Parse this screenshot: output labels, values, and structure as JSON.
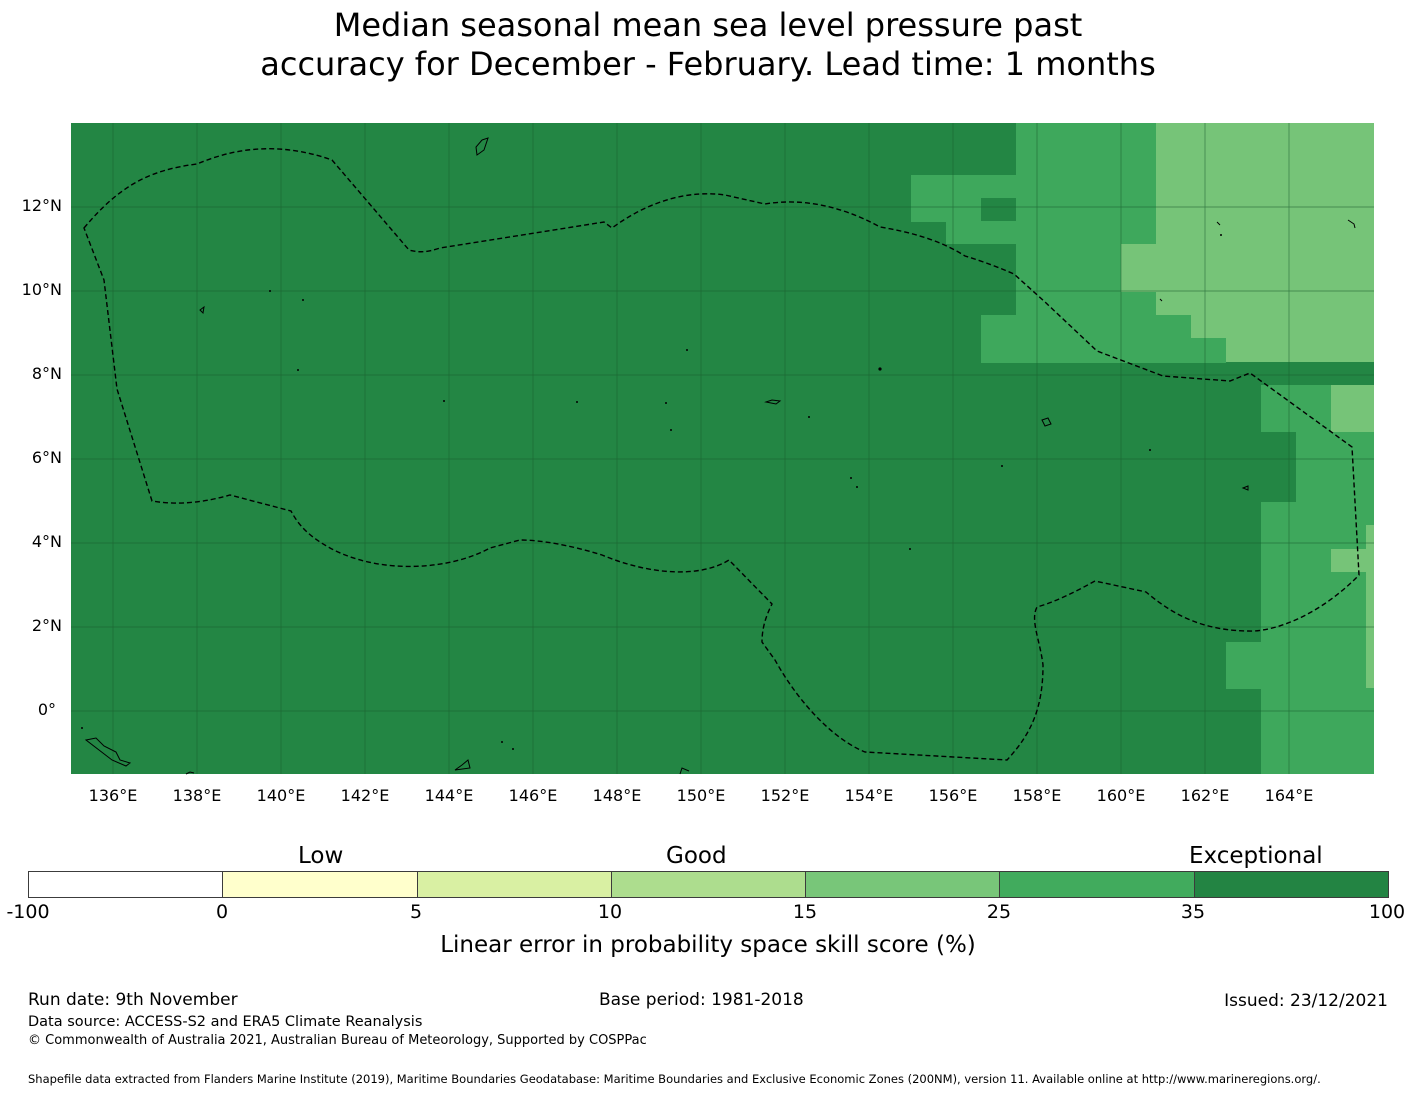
{
  "title": {
    "line1": "Median seasonal mean sea level pressure past",
    "line2": "accuracy for December - February. Lead time: 1 months"
  },
  "map": {
    "region": "Federated States of Micronesia EEZ",
    "boundary_style": "dashed",
    "lon_range": [
      135,
      166
    ],
    "lat_range": [
      -1.5,
      14
    ],
    "lat_ticks": [
      "12°N",
      "10°N",
      "8°N",
      "6°N",
      "4°N",
      "2°N",
      "0°"
    ],
    "lon_ticks": [
      "136°E",
      "138°E",
      "140°E",
      "142°E",
      "144°E",
      "146°E",
      "148°E",
      "150°E",
      "152°E",
      "154°E",
      "156°E",
      "158°E",
      "160°E",
      "162°E",
      "164°E"
    ],
    "colors": {
      "exceptional": "#238644",
      "band_25_35": "#3ea85c",
      "band_15_25": "#76c478",
      "grid": "#1a5c2e",
      "coast": "#000000"
    }
  },
  "legend": {
    "category_labels": [
      "Low",
      "Good",
      "Exceptional"
    ],
    "ticks": [
      "-100",
      "0",
      "5",
      "10",
      "15",
      "25",
      "35",
      "100"
    ],
    "bins": [
      {
        "from": "-100",
        "to": "0",
        "color": "#ffffff"
      },
      {
        "from": "0",
        "to": "5",
        "color": "#ffffcc"
      },
      {
        "from": "5",
        "to": "10",
        "color": "#d9f0a3"
      },
      {
        "from": "10",
        "to": "15",
        "color": "#addd8e"
      },
      {
        "from": "15",
        "to": "25",
        "color": "#78c679"
      },
      {
        "from": "25",
        "to": "35",
        "color": "#41ab5d"
      },
      {
        "from": "35",
        "to": "100",
        "color": "#238443"
      }
    ],
    "axis_label": "Linear error in probability space skill score (%)"
  },
  "footer": {
    "run_date": "Run date: 9th November",
    "base_period": "Base period: 1981-2018",
    "issued": "Issued: 23/12/2021",
    "data_source": "Data source: ACCESS-S2 and ERA5 Climate Reanalysis",
    "copyright": "© Commonwealth of Australia 2021, Australian Bureau of Meteorology, Supported by COSPPac",
    "shapefile": "Shapefile data extracted from Flanders Marine Institute (2019), Maritime Boundaries Geodatabase: Maritime Boundaries and Exclusive Economic Zones (200NM), version 11. Available online at http://www.marineregions.org/."
  }
}
